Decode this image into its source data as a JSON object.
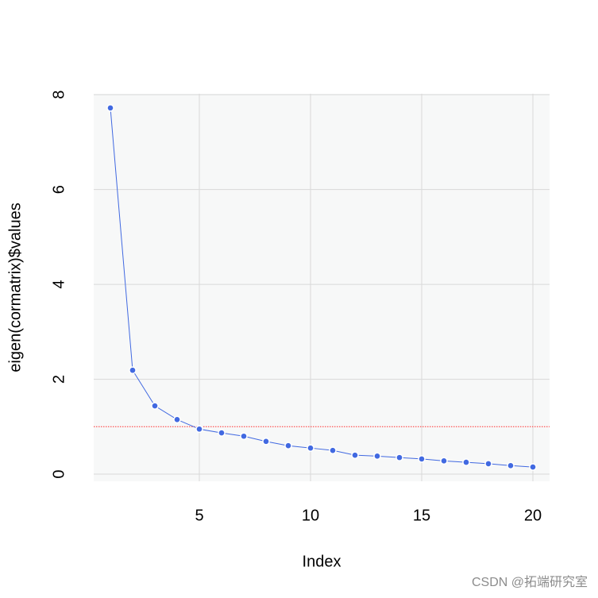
{
  "chart_data": {
    "type": "line",
    "xlabel": "Index",
    "ylabel": "eigen(cormatrix)$values",
    "x": [
      1,
      2,
      3,
      4,
      5,
      6,
      7,
      8,
      9,
      10,
      11,
      12,
      13,
      14,
      15,
      16,
      17,
      18,
      19,
      20
    ],
    "series": [
      {
        "color": "#4169e1",
        "values": [
          7.72,
          2.19,
          1.44,
          1.15,
          0.95,
          0.87,
          0.8,
          0.69,
          0.6,
          0.55,
          0.5,
          0.4,
          0.38,
          0.35,
          0.32,
          0.28,
          0.25,
          0.22,
          0.18,
          0.15
        ]
      }
    ],
    "xlim": [
      0.25,
      20.75
    ],
    "ylim": [
      -0.15,
      8.02
    ],
    "xticks": [
      5,
      10,
      15,
      20
    ],
    "yticks": [
      0,
      2,
      4,
      6,
      8
    ],
    "grid": true,
    "hline": {
      "value": 1,
      "color": "#ff3030"
    }
  },
  "watermark": "CSDN @拓端研究室"
}
